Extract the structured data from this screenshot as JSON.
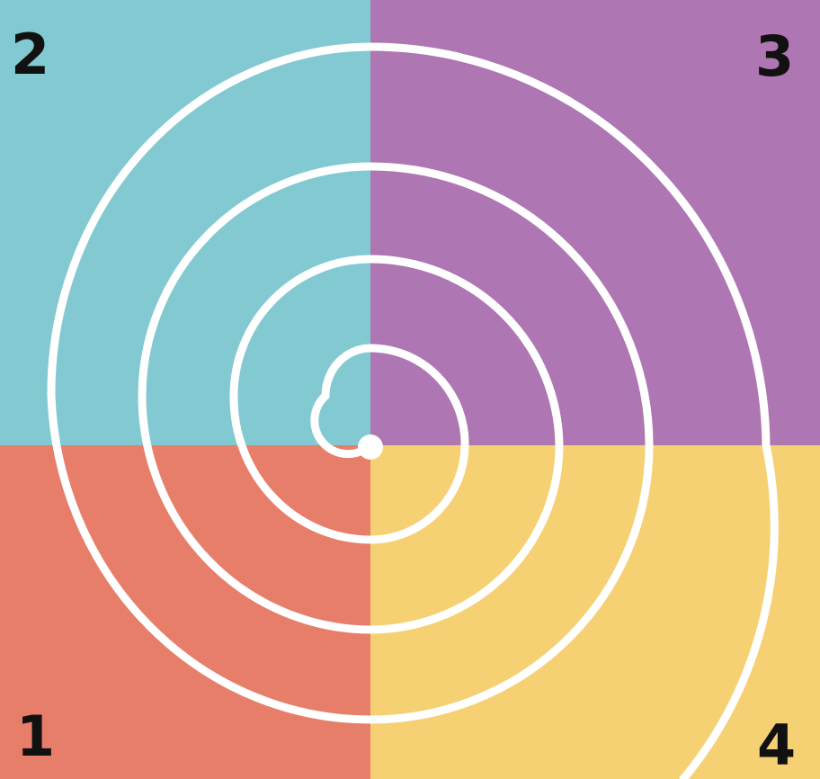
{
  "quadrants": {
    "top_left": {
      "number": "2",
      "color": "#83c9d1"
    },
    "top_right": {
      "number": "3",
      "color": "#ae76b2"
    },
    "bottom_left": {
      "number": "1",
      "color": "#e77e6a"
    },
    "bottom_right": {
      "number": "4",
      "color": "#f6d173"
    }
  },
  "spiral": {
    "color": "#ffffff",
    "center_dot_color": "#ffffff"
  },
  "label_color": "#111111"
}
